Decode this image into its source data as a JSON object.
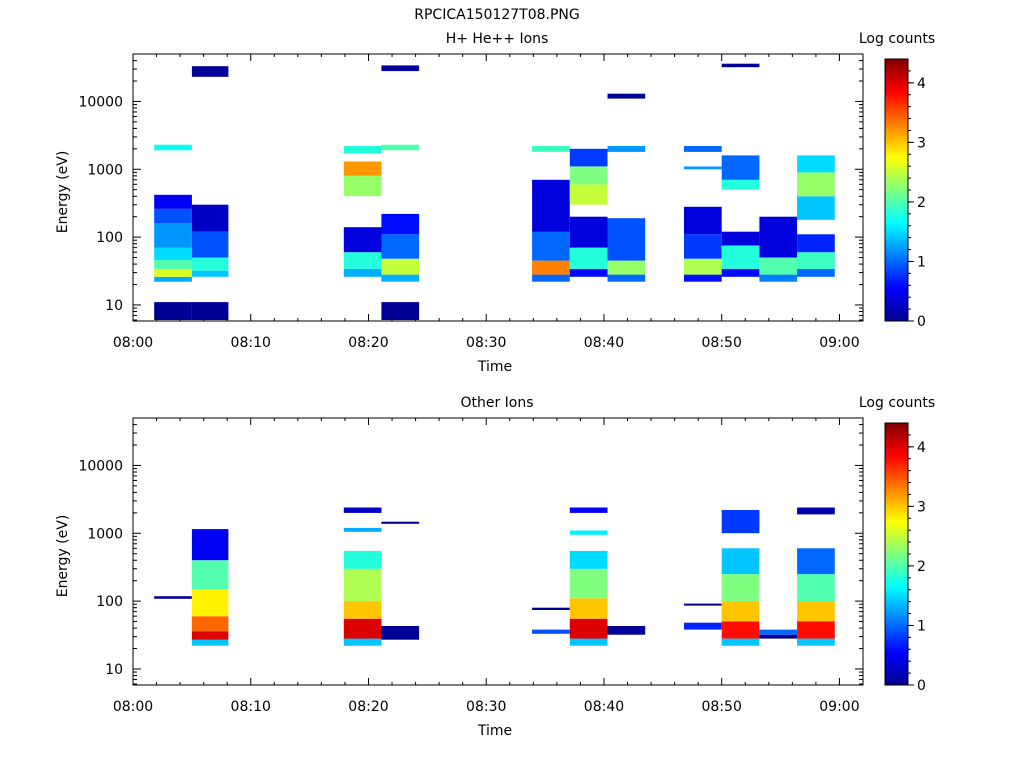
{
  "figure_title": "RPCICA150127T08.PNG",
  "panels": [
    {
      "title": "H+ He++ Ions",
      "cbar_label": "Log counts",
      "xlabel": "Time",
      "ylabel": "Energy (eV)"
    },
    {
      "title": "Other Ions",
      "cbar_label": "Log counts",
      "xlabel": "Time",
      "ylabel": "Energy (eV)"
    }
  ],
  "chart_data": [
    {
      "type": "heatmap",
      "title": "H+ He++ Ions",
      "xlabel": "Time",
      "ylabel": "Energy (eV)",
      "colorbar_label": "Log counts",
      "x_ticks": [
        "08:00",
        "08:10",
        "08:20",
        "08:30",
        "08:40",
        "08:50",
        "09:00"
      ],
      "y_ticks": [
        "10",
        "100",
        "1000",
        "10000"
      ],
      "colorbar_ticks": [
        "0",
        "1",
        "2",
        "3",
        "4"
      ],
      "xlim": [
        "08:00",
        "09:02"
      ],
      "ylim": [
        5.8,
        50000
      ],
      "y_scale": "log",
      "clim": [
        0,
        4.4
      ],
      "colormap": "jet",
      "columns": [
        {
          "t0": "08:01.8",
          "t1": "08:05.0",
          "segments": [
            {
              "e0": 22,
              "e1": 26,
              "v": 1.3
            },
            {
              "e0": 26,
              "e1": 34,
              "v": 2.6
            },
            {
              "e0": 34,
              "e1": 46,
              "v": 2.0
            },
            {
              "e0": 46,
              "e1": 70,
              "v": 1.5
            },
            {
              "e0": 70,
              "e1": 160,
              "v": 1.2
            },
            {
              "e0": 160,
              "e1": 260,
              "v": 0.9
            },
            {
              "e0": 260,
              "e1": 420,
              "v": 0.5
            },
            {
              "e0": 1900,
              "e1": 2300,
              "v": 1.7
            },
            {
              "e0": 6,
              "e1": 11,
              "v": 0.1
            }
          ]
        },
        {
          "t0": "08:05.0",
          "t1": "08:08.1",
          "segments": [
            {
              "e0": 26,
              "e1": 32,
              "v": 1.4
            },
            {
              "e0": 32,
              "e1": 50,
              "v": 1.8
            },
            {
              "e0": 50,
              "e1": 120,
              "v": 0.9
            },
            {
              "e0": 120,
              "e1": 300,
              "v": 0.3
            },
            {
              "e0": 6,
              "e1": 11,
              "v": 0.1
            },
            {
              "e0": 23000,
              "e1": 33000,
              "v": 0.1
            }
          ]
        },
        {
          "t0": "08:17.9",
          "t1": "08:21.1",
          "segments": [
            {
              "e0": 26,
              "e1": 34,
              "v": 1.3
            },
            {
              "e0": 34,
              "e1": 60,
              "v": 1.8
            },
            {
              "e0": 60,
              "e1": 140,
              "v": 0.4
            },
            {
              "e0": 400,
              "e1": 800,
              "v": 2.3
            },
            {
              "e0": 800,
              "e1": 1300,
              "v": 3.2
            },
            {
              "e0": 1700,
              "e1": 2200,
              "v": 1.8
            }
          ]
        },
        {
          "t0": "08:21.1",
          "t1": "08:24.3",
          "segments": [
            {
              "e0": 22,
              "e1": 28,
              "v": 1.3
            },
            {
              "e0": 28,
              "e1": 48,
              "v": 2.5
            },
            {
              "e0": 48,
              "e1": 110,
              "v": 1.0
            },
            {
              "e0": 110,
              "e1": 220,
              "v": 0.6
            },
            {
              "e0": 6,
              "e1": 11,
              "v": 0.1
            },
            {
              "e0": 1900,
              "e1": 2300,
              "v": 2.0
            },
            {
              "e0": 28000,
              "e1": 34000,
              "v": 0.1
            }
          ]
        },
        {
          "t0": "08:33.9",
          "t1": "08:37.1",
          "segments": [
            {
              "e0": 22,
              "e1": 28,
              "v": 1.0
            },
            {
              "e0": 28,
              "e1": 45,
              "v": 3.3
            },
            {
              "e0": 45,
              "e1": 120,
              "v": 1.0
            },
            {
              "e0": 120,
              "e1": 700,
              "v": 0.4
            },
            {
              "e0": 1800,
              "e1": 2200,
              "v": 1.9
            }
          ]
        },
        {
          "t0": "08:37.1",
          "t1": "08:40.3",
          "segments": [
            {
              "e0": 26,
              "e1": 34,
              "v": 0.6
            },
            {
              "e0": 34,
              "e1": 70,
              "v": 1.8
            },
            {
              "e0": 70,
              "e1": 200,
              "v": 0.4
            },
            {
              "e0": 300,
              "e1": 600,
              "v": 2.5
            },
            {
              "e0": 600,
              "e1": 1100,
              "v": 2.2
            },
            {
              "e0": 1100,
              "e1": 2000,
              "v": 0.8
            }
          ]
        },
        {
          "t0": "08:40.3",
          "t1": "08:43.5",
          "segments": [
            {
              "e0": 22,
              "e1": 28,
              "v": 1.0
            },
            {
              "e0": 28,
              "e1": 45,
              "v": 2.3
            },
            {
              "e0": 45,
              "e1": 190,
              "v": 0.9
            },
            {
              "e0": 1800,
              "e1": 2200,
              "v": 1.2
            },
            {
              "e0": 11000,
              "e1": 13000,
              "v": 0.1
            }
          ]
        },
        {
          "t0": "08:46.8",
          "t1": "08:50.0",
          "segments": [
            {
              "e0": 22,
              "e1": 28,
              "v": 0.6
            },
            {
              "e0": 28,
              "e1": 48,
              "v": 2.4
            },
            {
              "e0": 48,
              "e1": 110,
              "v": 0.8
            },
            {
              "e0": 110,
              "e1": 280,
              "v": 0.4
            },
            {
              "e0": 1000,
              "e1": 1100,
              "v": 1.2
            },
            {
              "e0": 1800,
              "e1": 2200,
              "v": 1.0
            }
          ]
        },
        {
          "t0": "08:50.0",
          "t1": "08:53.2",
          "segments": [
            {
              "e0": 26,
              "e1": 34,
              "v": 0.6
            },
            {
              "e0": 34,
              "e1": 75,
              "v": 1.8
            },
            {
              "e0": 75,
              "e1": 120,
              "v": 0.4
            },
            {
              "e0": 500,
              "e1": 700,
              "v": 1.8
            },
            {
              "e0": 700,
              "e1": 1600,
              "v": 1.0
            },
            {
              "e0": 32000,
              "e1": 36000,
              "v": 0.1
            }
          ]
        },
        {
          "t0": "08:53.2",
          "t1": "08:56.4",
          "segments": [
            {
              "e0": 22,
              "e1": 28,
              "v": 1.1
            },
            {
              "e0": 28,
              "e1": 50,
              "v": 2.0
            },
            {
              "e0": 50,
              "e1": 200,
              "v": 0.4
            }
          ]
        },
        {
          "t0": "08:56.4",
          "t1": "08:59.6",
          "segments": [
            {
              "e0": 26,
              "e1": 34,
              "v": 1.0
            },
            {
              "e0": 34,
              "e1": 60,
              "v": 1.9
            },
            {
              "e0": 60,
              "e1": 110,
              "v": 0.7
            },
            {
              "e0": 180,
              "e1": 400,
              "v": 1.4
            },
            {
              "e0": 400,
              "e1": 900,
              "v": 2.3
            },
            {
              "e0": 900,
              "e1": 1600,
              "v": 1.5
            }
          ]
        }
      ]
    },
    {
      "type": "heatmap",
      "title": "Other Ions",
      "xlabel": "Time",
      "ylabel": "Energy (eV)",
      "colorbar_label": "Log counts",
      "x_ticks": [
        "08:00",
        "08:10",
        "08:20",
        "08:30",
        "08:40",
        "08:50",
        "09:00"
      ],
      "y_ticks": [
        "10",
        "100",
        "1000",
        "10000"
      ],
      "colorbar_ticks": [
        "0",
        "1",
        "2",
        "3",
        "4"
      ],
      "xlim": [
        "08:00",
        "09:02"
      ],
      "ylim": [
        5.8,
        50000
      ],
      "y_scale": "log",
      "clim": [
        0,
        4.4
      ],
      "colormap": "jet",
      "columns": [
        {
          "t0": "08:01.8",
          "t1": "08:05.0",
          "segments": [
            {
              "e0": 108,
              "e1": 118,
              "v": 0.1
            }
          ]
        },
        {
          "t0": "08:05.0",
          "t1": "08:08.1",
          "segments": [
            {
              "e0": 22,
              "e1": 27,
              "v": 1.4
            },
            {
              "e0": 27,
              "e1": 36,
              "v": 4.0
            },
            {
              "e0": 36,
              "e1": 60,
              "v": 3.4
            },
            {
              "e0": 60,
              "e1": 150,
              "v": 2.8
            },
            {
              "e0": 150,
              "e1": 400,
              "v": 2.0
            },
            {
              "e0": 400,
              "e1": 1150,
              "v": 0.5
            }
          ]
        },
        {
          "t0": "08:17.9",
          "t1": "08:21.1",
          "segments": [
            {
              "e0": 22,
              "e1": 28,
              "v": 1.4
            },
            {
              "e0": 28,
              "e1": 55,
              "v": 4.0
            },
            {
              "e0": 55,
              "e1": 100,
              "v": 3.0
            },
            {
              "e0": 100,
              "e1": 300,
              "v": 2.4
            },
            {
              "e0": 300,
              "e1": 550,
              "v": 1.8
            },
            {
              "e0": 1050,
              "e1": 1200,
              "v": 1.3
            },
            {
              "e0": 2000,
              "e1": 2400,
              "v": 0.3
            }
          ]
        },
        {
          "t0": "08:21.1",
          "t1": "08:24.3",
          "segments": [
            {
              "e0": 27,
              "e1": 43,
              "v": 0.1
            },
            {
              "e0": 1380,
              "e1": 1480,
              "v": 0.1
            }
          ]
        },
        {
          "t0": "08:33.9",
          "t1": "08:37.1",
          "segments": [
            {
              "e0": 33,
              "e1": 38,
              "v": 0.9
            },
            {
              "e0": 74,
              "e1": 80,
              "v": 0.1
            }
          ]
        },
        {
          "t0": "08:37.1",
          "t1": "08:40.3",
          "segments": [
            {
              "e0": 22,
              "e1": 28,
              "v": 1.4
            },
            {
              "e0": 28,
              "e1": 55,
              "v": 4.0
            },
            {
              "e0": 55,
              "e1": 110,
              "v": 3.0
            },
            {
              "e0": 110,
              "e1": 300,
              "v": 2.2
            },
            {
              "e0": 300,
              "e1": 550,
              "v": 1.5
            },
            {
              "e0": 950,
              "e1": 1100,
              "v": 1.6
            },
            {
              "e0": 2000,
              "e1": 2400,
              "v": 0.5
            }
          ]
        },
        {
          "t0": "08:40.3",
          "t1": "08:43.5",
          "segments": [
            {
              "e0": 32,
              "e1": 43,
              "v": 0.1
            }
          ]
        },
        {
          "t0": "08:46.8",
          "t1": "08:50.0",
          "segments": [
            {
              "e0": 38,
              "e1": 48,
              "v": 0.7
            },
            {
              "e0": 86,
              "e1": 92,
              "v": 0.1
            }
          ]
        },
        {
          "t0": "08:50.0",
          "t1": "08:53.2",
          "segments": [
            {
              "e0": 22,
              "e1": 28,
              "v": 1.4
            },
            {
              "e0": 28,
              "e1": 50,
              "v": 3.8
            },
            {
              "e0": 50,
              "e1": 100,
              "v": 3.0
            },
            {
              "e0": 100,
              "e1": 250,
              "v": 2.2
            },
            {
              "e0": 250,
              "e1": 600,
              "v": 1.4
            },
            {
              "e0": 1000,
              "e1": 2200,
              "v": 0.8
            }
          ]
        },
        {
          "t0": "08:53.2",
          "t1": "08:56.4",
          "segments": [
            {
              "e0": 28,
              "e1": 32,
              "v": 0.1
            },
            {
              "e0": 32,
              "e1": 38,
              "v": 1.0
            }
          ]
        },
        {
          "t0": "08:56.4",
          "t1": "08:59.6",
          "segments": [
            {
              "e0": 22,
              "e1": 28,
              "v": 1.4
            },
            {
              "e0": 28,
              "e1": 50,
              "v": 3.8
            },
            {
              "e0": 50,
              "e1": 100,
              "v": 3.0
            },
            {
              "e0": 100,
              "e1": 250,
              "v": 2.0
            },
            {
              "e0": 250,
              "e1": 600,
              "v": 1.0
            },
            {
              "e0": 1900,
              "e1": 2400,
              "v": 0.2
            }
          ]
        }
      ]
    }
  ]
}
